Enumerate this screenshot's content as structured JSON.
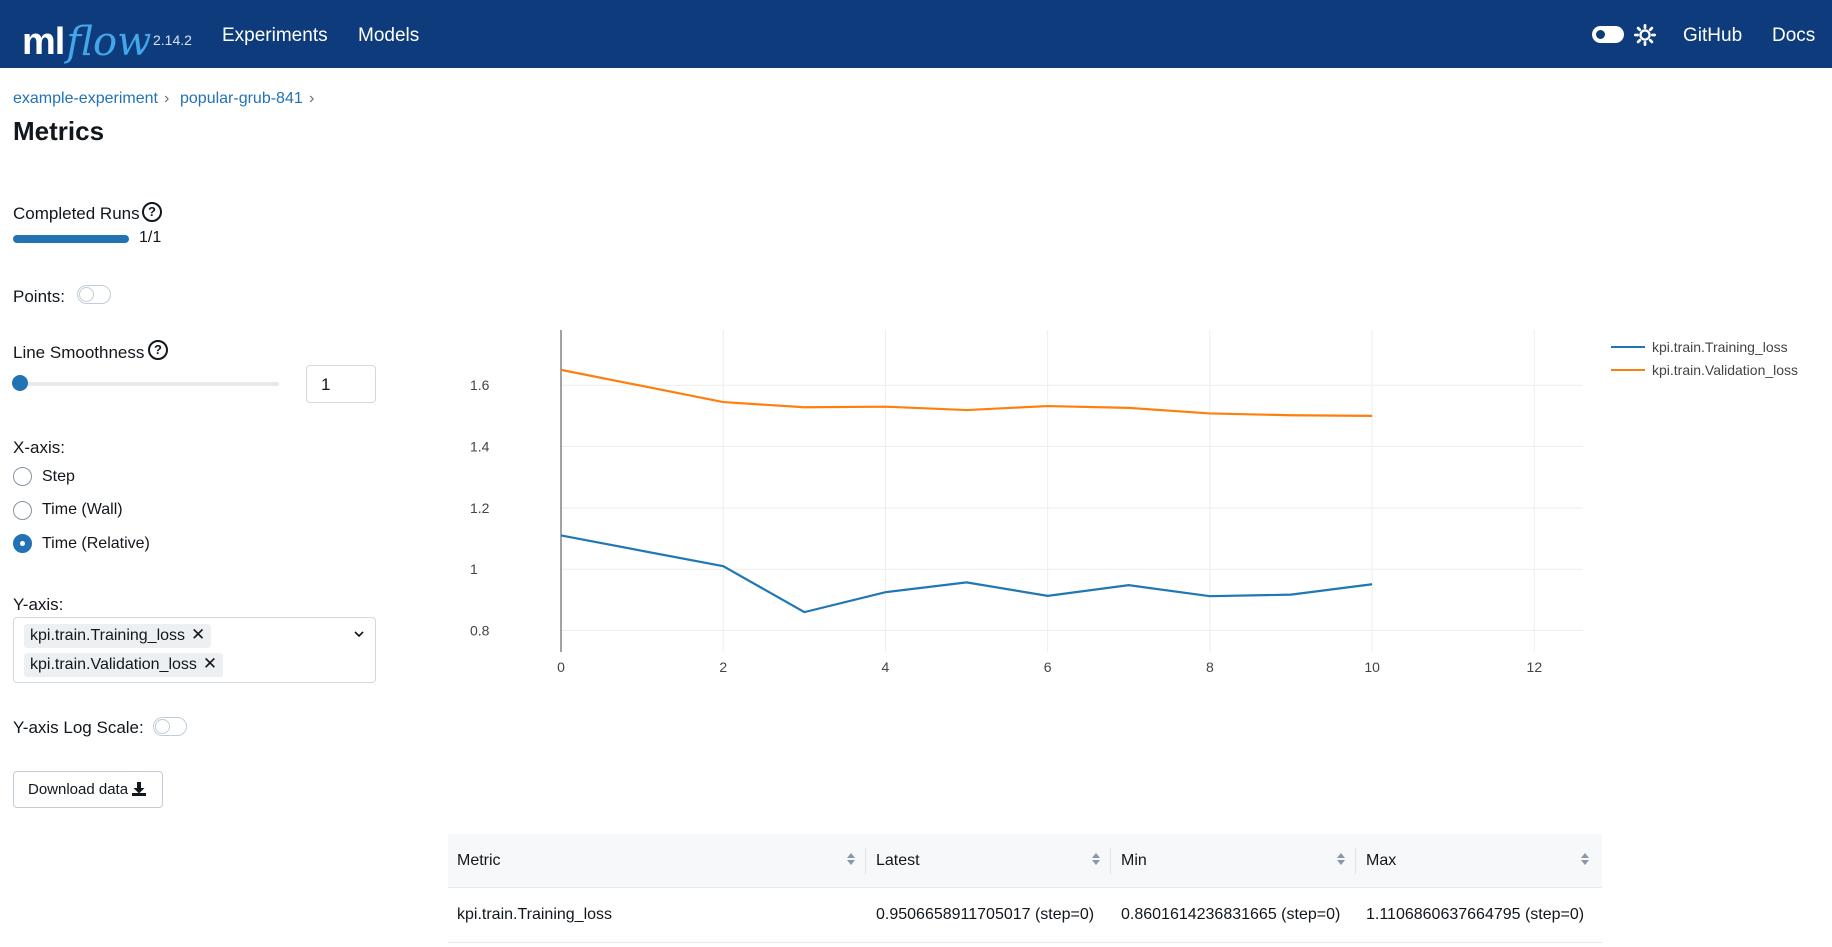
{
  "header": {
    "logo_ml": "ml",
    "logo_flow": "flow",
    "version": "2.14.2",
    "nav": [
      "Experiments",
      "Models"
    ],
    "right_links": [
      "GitHub",
      "Docs"
    ]
  },
  "breadcrumb": [
    "example-experiment",
    "popular-grub-841"
  ],
  "page_title": "Metrics",
  "controls": {
    "completed_runs_label": "Completed Runs",
    "completed_runs_text": "1/1",
    "completed_runs_fraction": 1.0,
    "points_label": "Points:",
    "points_enabled": false,
    "smoothness_label": "Line Smoothness",
    "smoothness_value": "1",
    "xaxis_label": "X-axis:",
    "xaxis_options": [
      "Step",
      "Time (Wall)",
      "Time (Relative)"
    ],
    "xaxis_selected": "Time (Relative)",
    "yaxis_label": "Y-axis:",
    "yaxis_selected": [
      "kpi.train.Training_loss",
      "kpi.train.Validation_loss"
    ],
    "ylog_label": "Y-axis Log Scale:",
    "ylog_enabled": false,
    "download_label": "Download data"
  },
  "chart_data": {
    "type": "line",
    "xlim": [
      0,
      12.6
    ],
    "ylim": [
      0.73,
      1.78
    ],
    "x_ticks": [
      0,
      2,
      4,
      6,
      8,
      10,
      12
    ],
    "y_ticks": [
      0.8,
      1,
      1.2,
      1.4,
      1.6
    ],
    "y_tick_labels": [
      "0.8",
      "1",
      "1.2",
      "1.4",
      "1.6"
    ],
    "grid": true,
    "legend_position": "top-right",
    "series": [
      {
        "name": "kpi.train.Training_loss",
        "color": "#1f77b4",
        "x": [
          0,
          2,
          3,
          4,
          5,
          6,
          7,
          8,
          9,
          10
        ],
        "y": [
          1.11,
          1.01,
          0.86,
          0.925,
          0.957,
          0.913,
          0.948,
          0.912,
          0.917,
          0.951
        ]
      },
      {
        "name": "kpi.train.Validation_loss",
        "color": "#ff7f0e",
        "x": [
          0,
          2,
          3,
          4,
          5,
          6,
          7,
          8,
          9,
          10
        ],
        "y": [
          1.65,
          1.545,
          1.528,
          1.53,
          1.519,
          1.532,
          1.526,
          1.508,
          1.502,
          1.5
        ]
      }
    ]
  },
  "table": {
    "headers": [
      "Metric",
      "Latest",
      "Min",
      "Max"
    ],
    "rows": [
      [
        "kpi.train.Training_loss",
        "0.9506658911705017 (step=0)",
        "0.8601614236831665 (step=0)",
        "1.1106860637664795 (step=0)"
      ]
    ]
  }
}
